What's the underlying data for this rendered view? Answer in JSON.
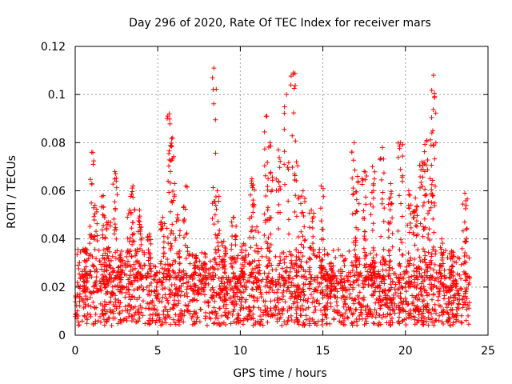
{
  "chart_data": {
    "type": "scatter",
    "title": "Day 296 of 2020, Rate Of TEC Index for receiver mars",
    "xlabel": "GPS time / hours",
    "ylabel": "ROTI / TECUs",
    "xlim": [
      0,
      25
    ],
    "ylim": [
      0,
      0.12
    ],
    "xticks": [
      0,
      5,
      10,
      15,
      20,
      25
    ],
    "yticks": [
      0,
      0.02,
      0.04,
      0.06,
      0.08,
      0.1,
      0.12
    ],
    "ytick_labels": [
      "0",
      "0.02",
      "0.04",
      "0.06",
      "0.08",
      "0.1",
      "0.12"
    ],
    "grid": true,
    "marker": "+",
    "color": "#ff0000",
    "baseline": {
      "x_start": 0.0,
      "x_end": 23.9,
      "y_min": 0.004,
      "y_max": 0.024
    },
    "spikes": [
      {
        "x": 0.6,
        "y": 0.036
      },
      {
        "x": 1.0,
        "y": 0.076
      },
      {
        "x": 1.2,
        "y": 0.054
      },
      {
        "x": 1.7,
        "y": 0.058
      },
      {
        "x": 2.0,
        "y": 0.047
      },
      {
        "x": 2.4,
        "y": 0.068
      },
      {
        "x": 2.7,
        "y": 0.033
      },
      {
        "x": 3.3,
        "y": 0.052
      },
      {
        "x": 3.5,
        "y": 0.062
      },
      {
        "x": 3.9,
        "y": 0.052
      },
      {
        "x": 4.5,
        "y": 0.042
      },
      {
        "x": 5.3,
        "y": 0.049
      },
      {
        "x": 5.7,
        "y": 0.092
      },
      {
        "x": 5.9,
        "y": 0.082
      },
      {
        "x": 6.2,
        "y": 0.05
      },
      {
        "x": 6.7,
        "y": 0.062
      },
      {
        "x": 7.2,
        "y": 0.033
      },
      {
        "x": 7.8,
        "y": 0.03
      },
      {
        "x": 8.4,
        "y": 0.111
      },
      {
        "x": 8.6,
        "y": 0.06
      },
      {
        "x": 9.0,
        "y": 0.039
      },
      {
        "x": 9.6,
        "y": 0.049
      },
      {
        "x": 10.2,
        "y": 0.038
      },
      {
        "x": 10.7,
        "y": 0.065
      },
      {
        "x": 11.0,
        "y": 0.045
      },
      {
        "x": 11.6,
        "y": 0.091
      },
      {
        "x": 11.8,
        "y": 0.08
      },
      {
        "x": 12.3,
        "y": 0.077
      },
      {
        "x": 12.8,
        "y": 0.1
      },
      {
        "x": 13.2,
        "y": 0.109
      },
      {
        "x": 13.4,
        "y": 0.072
      },
      {
        "x": 13.8,
        "y": 0.06
      },
      {
        "x": 14.3,
        "y": 0.052
      },
      {
        "x": 14.9,
        "y": 0.062
      },
      {
        "x": 15.5,
        "y": 0.03
      },
      {
        "x": 16.2,
        "y": 0.033
      },
      {
        "x": 16.9,
        "y": 0.08
      },
      {
        "x": 17.1,
        "y": 0.066
      },
      {
        "x": 17.5,
        "y": 0.068
      },
      {
        "x": 18.0,
        "y": 0.07
      },
      {
        "x": 18.6,
        "y": 0.078
      },
      {
        "x": 19.1,
        "y": 0.063
      },
      {
        "x": 19.7,
        "y": 0.08
      },
      {
        "x": 20.2,
        "y": 0.06
      },
      {
        "x": 20.6,
        "y": 0.057
      },
      {
        "x": 21.0,
        "y": 0.072
      },
      {
        "x": 21.3,
        "y": 0.081
      },
      {
        "x": 21.6,
        "y": 0.084
      },
      {
        "x": 21.7,
        "y": 0.108
      },
      {
        "x": 22.2,
        "y": 0.04
      },
      {
        "x": 22.8,
        "y": 0.035
      },
      {
        "x": 23.6,
        "y": 0.059
      }
    ]
  }
}
